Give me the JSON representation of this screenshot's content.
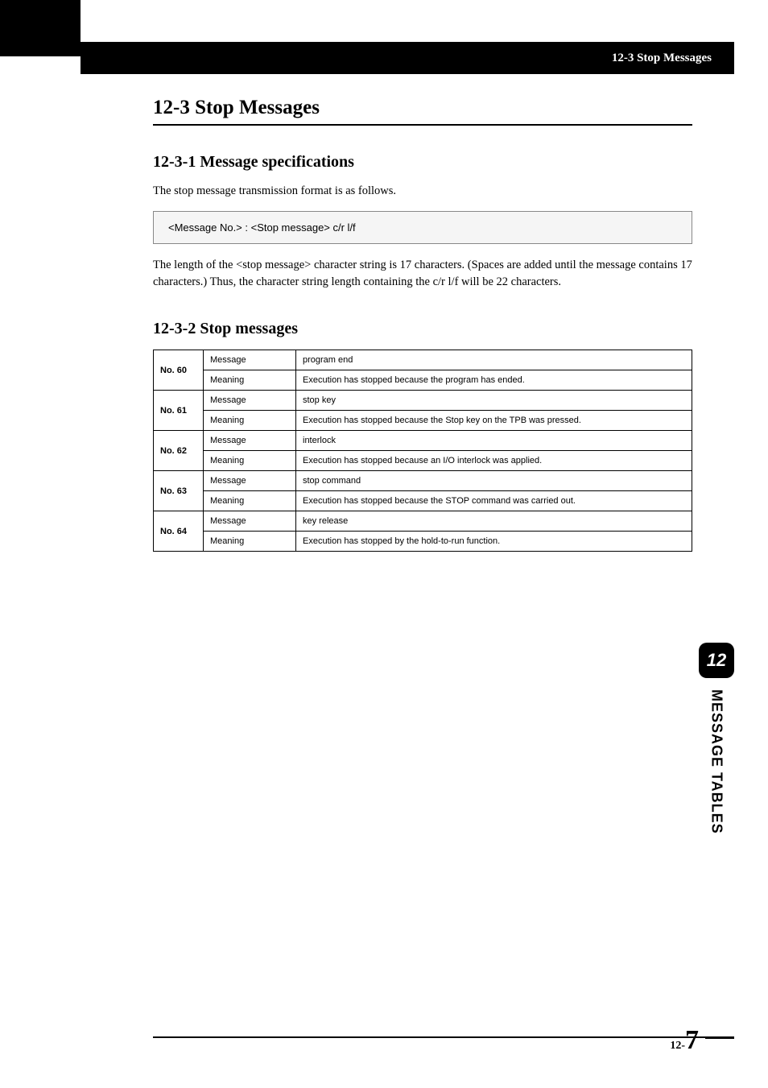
{
  "header": {
    "breadcrumb": "12-3 Stop Messages"
  },
  "section": {
    "title": "12-3  Stop Messages"
  },
  "sub1": {
    "title": "12-3-1  Message specifications",
    "intro": "The stop message transmission format is as follows.",
    "format": "<Message No.> : <Stop message> c/r l/f",
    "desc": "The length of the <stop message> character string is 17 characters. (Spaces are added until the message contains 17 characters.) Thus, the character string length containing the c/r l/f will be 22 characters."
  },
  "sub2": {
    "title": "12-3-2  Stop messages",
    "rows": [
      {
        "no": "No. 60",
        "msgLabel": "Message",
        "msg": "program end",
        "meanLabel": "Meaning",
        "meaning": "Execution has stopped because the program has ended."
      },
      {
        "no": "No. 61",
        "msgLabel": "Message",
        "msg": "stop key",
        "meanLabel": "Meaning",
        "meaning": "Execution has stopped because the Stop key on the TPB was pressed."
      },
      {
        "no": "No. 62",
        "msgLabel": "Message",
        "msg": "interlock",
        "meanLabel": "Meaning",
        "meaning": "Execution has stopped because an I/O interlock was applied."
      },
      {
        "no": "No. 63",
        "msgLabel": "Message",
        "msg": "stop command",
        "meanLabel": "Meaning",
        "meaning": "Execution has stopped because the STOP command was carried out."
      },
      {
        "no": "No. 64",
        "msgLabel": "Message",
        "msg": "key release",
        "meanLabel": "Meaning",
        "meaning": "Execution has stopped by the hold-to-run function."
      }
    ]
  },
  "sidetab": {
    "number": "12",
    "label": "MESSAGE TABLES"
  },
  "footer": {
    "prefix": "12-",
    "page": "7"
  }
}
